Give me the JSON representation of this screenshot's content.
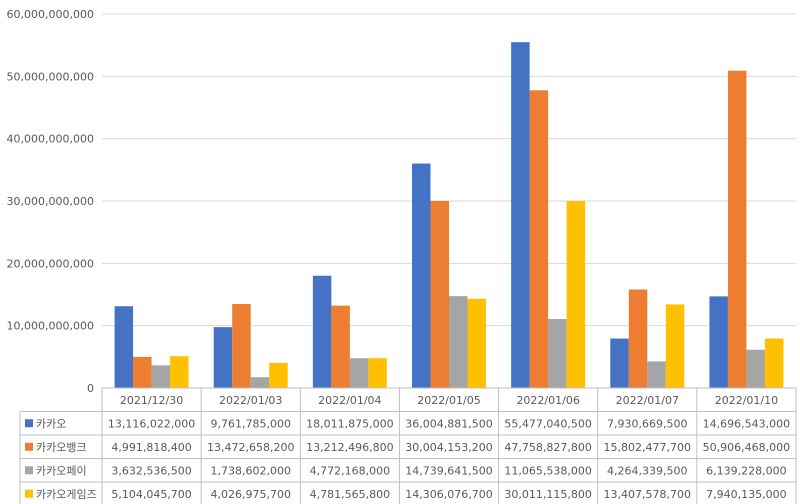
{
  "chart_data": {
    "type": "bar",
    "title": "",
    "xlabel": "",
    "ylabel": "",
    "ylim": [
      0,
      60000000000
    ],
    "yticks": [
      "0",
      "10,000,000,000",
      "20,000,000,000",
      "30,000,000,000",
      "40,000,000,000",
      "50,000,000,000",
      "60,000,000,000"
    ],
    "grid": true,
    "legend_placement": "data-table",
    "categories": [
      "2021/12/30",
      "2022/01/03",
      "2022/01/04",
      "2022/01/05",
      "2022/01/06",
      "2022/01/07",
      "2022/01/10"
    ],
    "series": [
      {
        "name": "카카오",
        "color": "#4472C4",
        "values": [
          13116022000,
          9761785000,
          18011875000,
          36004881500,
          55477040500,
          7930669500,
          14696543000
        ],
        "labels": [
          "13,116,022,000",
          "9,761,785,000",
          "18,011,875,000",
          "36,004,881,500",
          "55,477,040,500",
          "7,930,669,500",
          "14,696,543,000"
        ]
      },
      {
        "name": "카카오뱅크",
        "color": "#ED7D31",
        "values": [
          4991818400,
          13472658200,
          13212496800,
          30004153200,
          47758827800,
          15802477700,
          50906468000
        ],
        "labels": [
          "4,991,818,400",
          "13,472,658,200",
          "13,212,496,800",
          "30,004,153,200",
          "47,758,827,800",
          "15,802,477,700",
          "50,906,468,000"
        ]
      },
      {
        "name": "카카오페이",
        "color": "#A5A5A5",
        "values": [
          3632536500,
          1738602000,
          4772168000,
          14739641500,
          11065538000,
          4264339500,
          6139228000
        ],
        "labels": [
          "3,632,536,500",
          "1,738,602,000",
          "4,772,168,000",
          "14,739,641,500",
          "11,065,538,000",
          "4,264,339,500",
          "6,139,228,000"
        ]
      },
      {
        "name": "카카오게임즈",
        "color": "#FFC000",
        "values": [
          5104045700,
          4026975700,
          4781565800,
          14306076700,
          30011115800,
          13407578700,
          7940135000
        ],
        "labels": [
          "5,104,045,700",
          "4,026,975,700",
          "4,781,565,800",
          "14,306,076,700",
          "30,011,115,800",
          "13,407,578,700",
          "7,940,135,000"
        ]
      }
    ]
  }
}
